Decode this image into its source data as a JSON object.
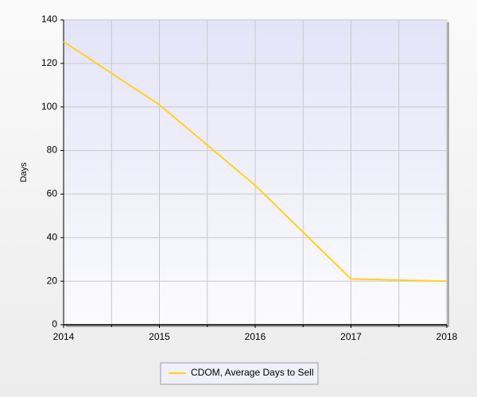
{
  "chart_data": {
    "type": "line",
    "ylabel": "Days",
    "x": [
      2014,
      2015,
      2016,
      2017,
      2018
    ],
    "series": [
      {
        "name": "CDOM, Average Days to Sell",
        "color": "#ffd21f",
        "values": [
          130,
          101,
          64,
          21,
          20
        ]
      }
    ],
    "xlim": [
      2014,
      2018
    ],
    "xticks": [
      2014,
      2015,
      2016,
      2017,
      2018
    ],
    "ylim": [
      0,
      140
    ],
    "yticks": [
      0,
      20,
      40,
      60,
      80,
      100,
      120,
      140
    ],
    "grid": true,
    "legend": "bottom"
  }
}
